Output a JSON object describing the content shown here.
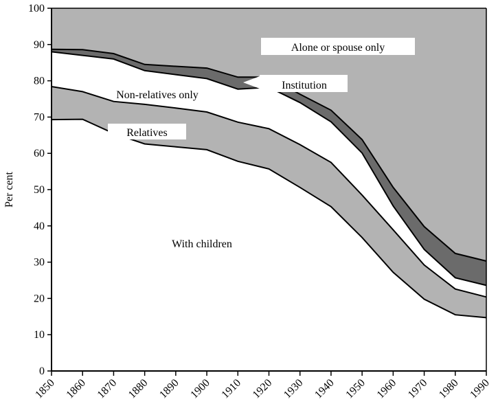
{
  "chart_data": {
    "type": "area",
    "stacked": true,
    "xlabel": "",
    "ylabel": "Per cent",
    "xlim": [
      1850,
      1990
    ],
    "ylim": [
      0,
      100
    ],
    "x": [
      1850,
      1860,
      1870,
      1880,
      1890,
      1900,
      1910,
      1920,
      1930,
      1940,
      1950,
      1960,
      1970,
      1980,
      1990
    ],
    "xticks": [
      "1850",
      "1860",
      "1870",
      "1880",
      "1890",
      "1900",
      "1910",
      "1920",
      "1930",
      "1940",
      "1950",
      "1960",
      "1970",
      "1980",
      "1990"
    ],
    "yticks": [
      "0",
      "10",
      "20",
      "30",
      "40",
      "50",
      "60",
      "70",
      "80",
      "90",
      "100"
    ],
    "grid": false,
    "series": [
      {
        "name": "With children",
        "color": "#ffffff",
        "upper": [
          69.3,
          69.4,
          65.5,
          62.6,
          61.8,
          61.0,
          57.8,
          55.7,
          50.6,
          45.3,
          36.8,
          27.2,
          19.8,
          15.5,
          14.7
        ]
      },
      {
        "name": "Relatives",
        "color": "#b3b3b3",
        "upper": [
          78.4,
          77.0,
          74.3,
          73.5,
          72.5,
          71.4,
          68.6,
          66.8,
          62.4,
          57.5,
          48.5,
          38.9,
          29.2,
          22.6,
          20.4
        ]
      },
      {
        "name": "Non-relatives only",
        "color": "#ffffff",
        "upper": [
          88.0,
          87.0,
          86.0,
          82.8,
          81.7,
          80.6,
          77.7,
          78.2,
          74.0,
          68.7,
          60.1,
          45.5,
          33.5,
          25.7,
          23.6
        ]
      },
      {
        "name": "Institution",
        "color": "#6b6b6b",
        "upper": [
          88.7,
          88.6,
          87.5,
          84.5,
          84.0,
          83.5,
          81.0,
          81.0,
          76.3,
          71.9,
          63.8,
          50.6,
          39.8,
          32.4,
          30.3
        ]
      },
      {
        "name": "Alone or spouse only",
        "color": "#b3b3b3",
        "upper": [
          100,
          100,
          100,
          100,
          100,
          100,
          100,
          100,
          100,
          100,
          100,
          100,
          100,
          100,
          100
        ]
      }
    ]
  }
}
